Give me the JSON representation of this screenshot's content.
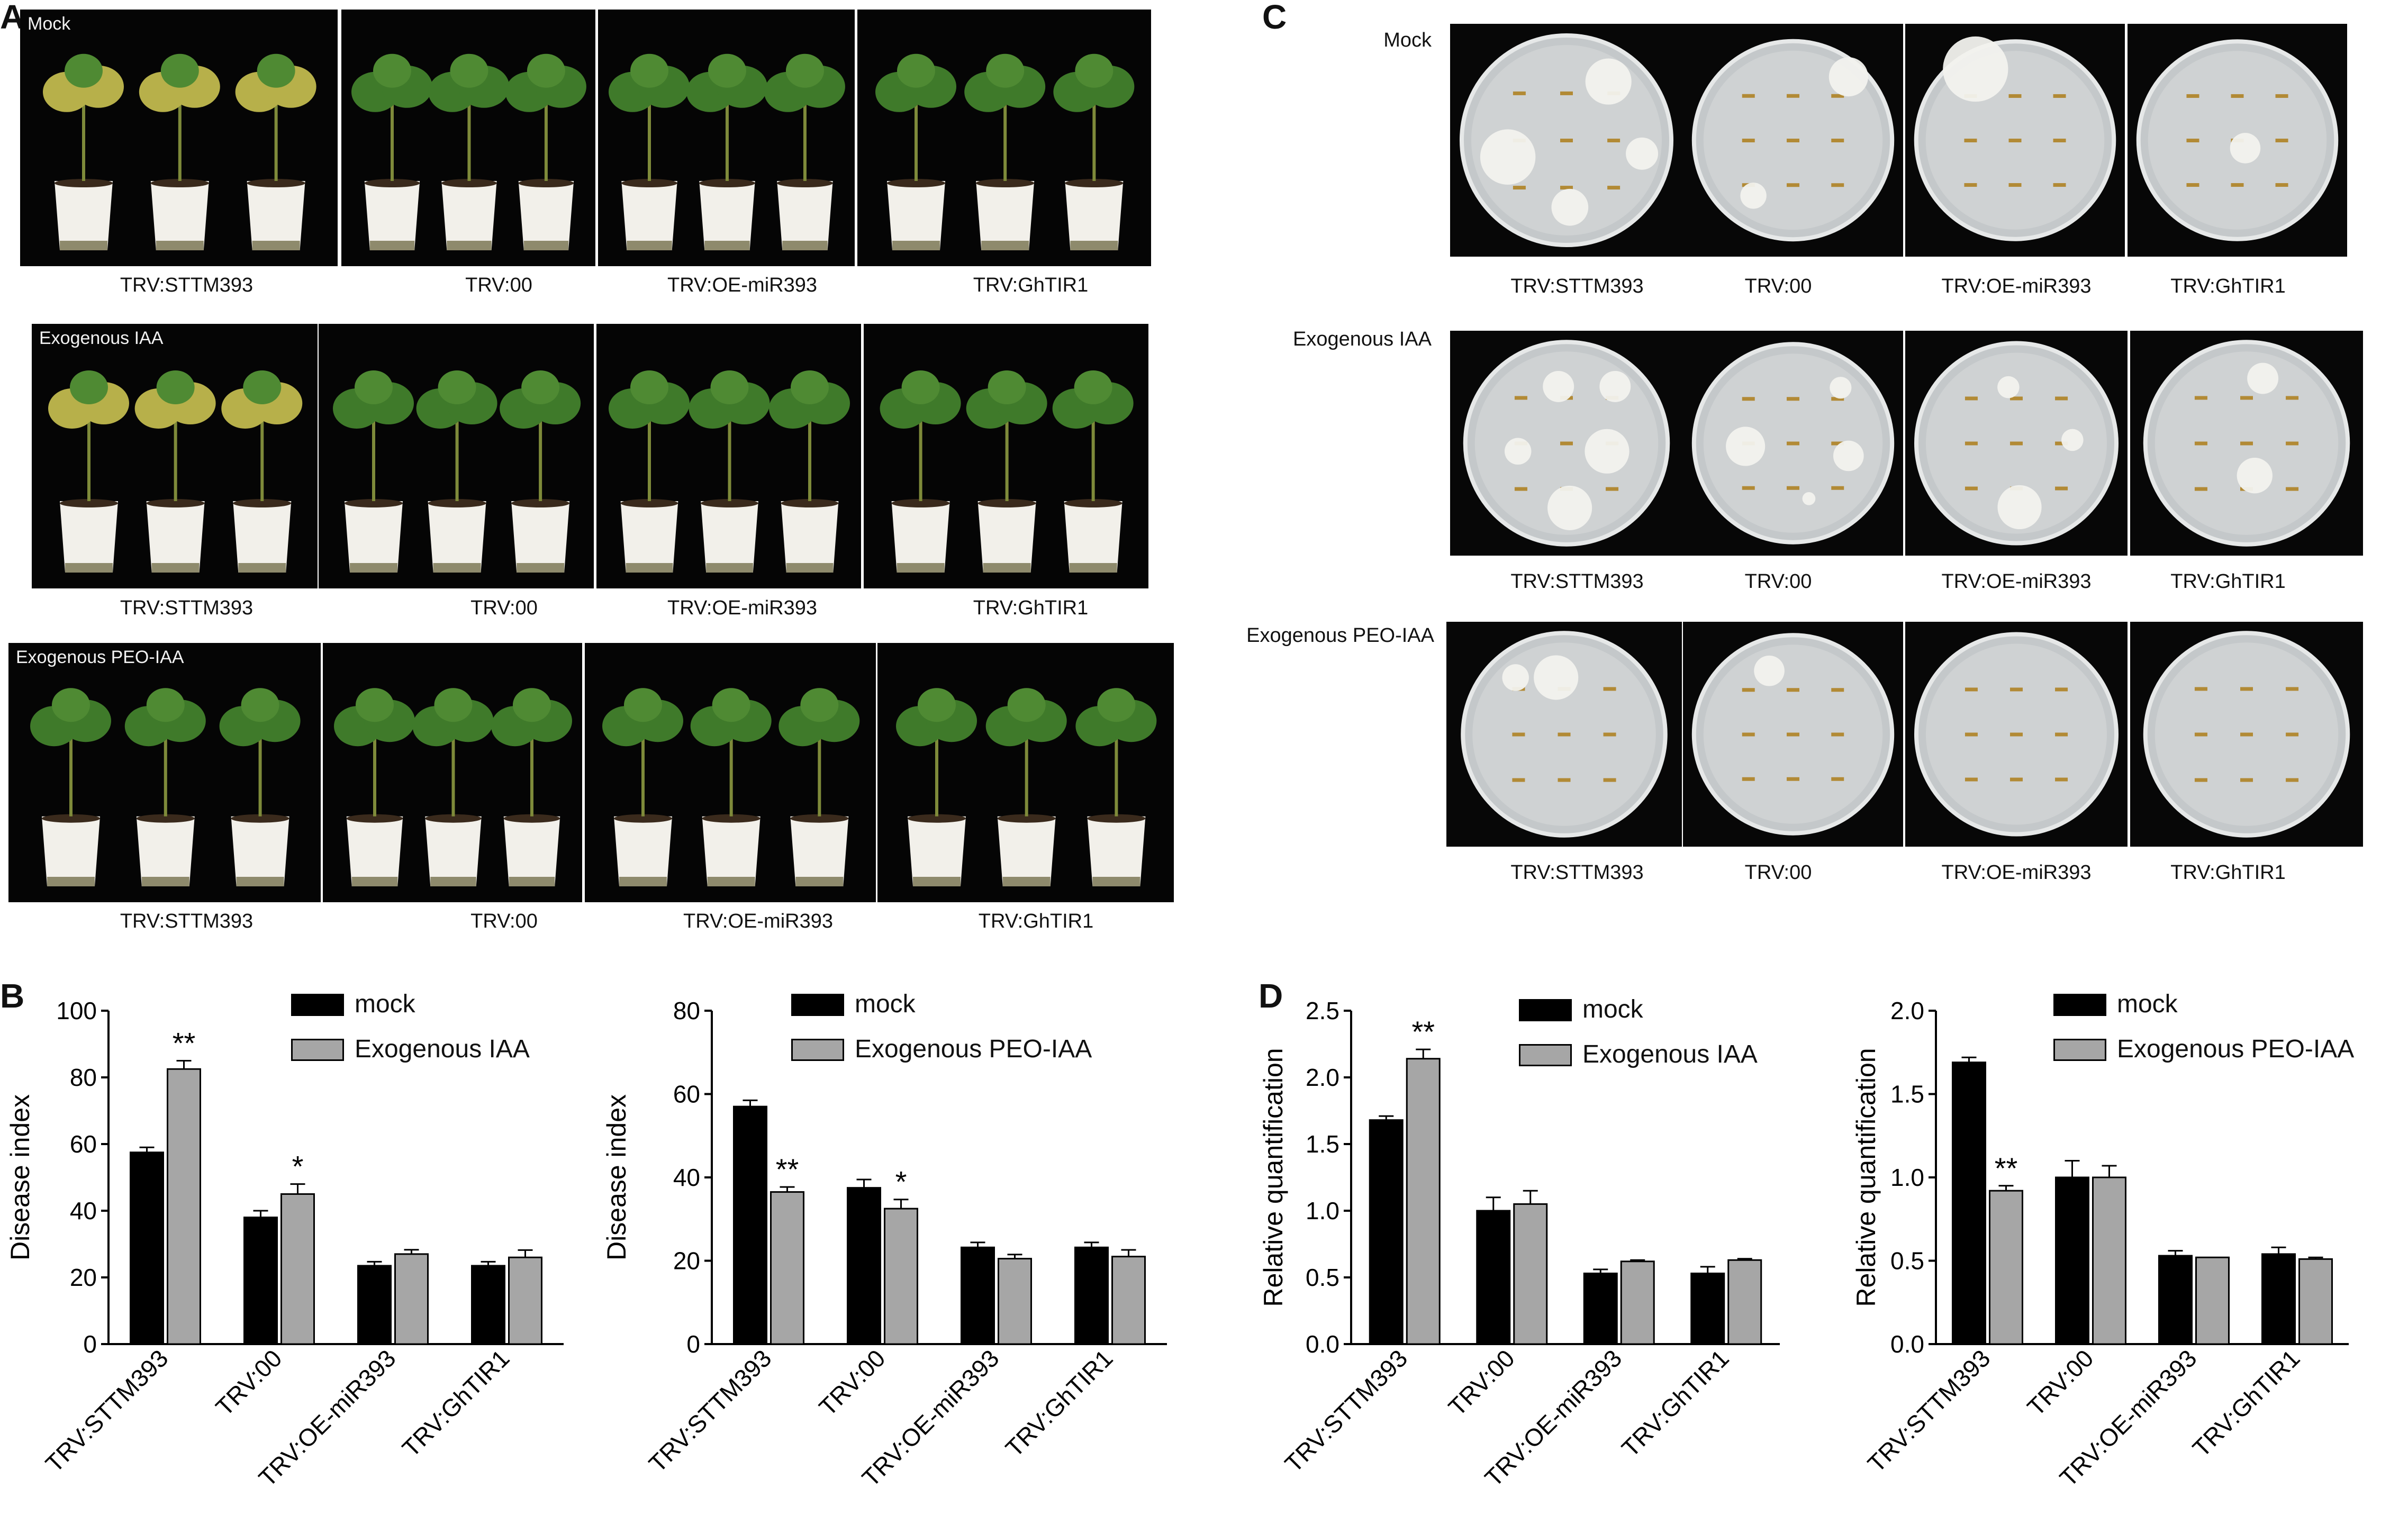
{
  "panel_letters": {
    "a": "A",
    "b": "B",
    "c": "C",
    "d": "D"
  },
  "colors": {
    "mock": "#000000",
    "treated": "#a6a6a6",
    "photo_bg": "#050505",
    "plant_leaf": "#3f7a2a",
    "pot": "#f2f0ea",
    "plate": "#cfd2d3"
  },
  "panel_a": {
    "rows": [
      {
        "label": "Mock",
        "captions": [
          "TRV:STTM393",
          "TRV:00",
          "TRV:OE-miR393",
          "TRV:GhTIR1"
        ]
      },
      {
        "label": "Exogenous IAA",
        "captions": [
          "TRV:STTM393",
          "TRV:00",
          "TRV:OE-miR393",
          "TRV:GhTIR1"
        ]
      },
      {
        "label": "Exogenous PEO-IAA",
        "captions": [
          "TRV:STTM393",
          "TRV:00",
          "TRV:OE-miR393",
          "TRV:GhTIR1"
        ]
      }
    ]
  },
  "panel_c": {
    "rows": [
      {
        "label": "Mock",
        "captions": [
          "TRV:STTM393",
          "TRV:00",
          "TRV:OE-miR393",
          "TRV:GhTIR1"
        ]
      },
      {
        "label": "Exogenous IAA",
        "captions": [
          "TRV:STTM393",
          "TRV:00",
          "TRV:OE-miR393",
          "TRV:GhTIR1"
        ]
      },
      {
        "label": "Exogenous PEO-IAA",
        "captions": [
          "TRV:STTM393",
          "TRV:00",
          "TRV:OE-miR393",
          "TRV:GhTIR1"
        ]
      }
    ]
  },
  "chart_data": [
    {
      "id": "B1",
      "type": "bar",
      "categories": [
        "TRV:STTM393",
        "TRV:00",
        "TRV:OE-miR393",
        "TRV:GhTIR1"
      ],
      "series": [
        {
          "name": "mock",
          "values": [
            57.5,
            38,
            23.5,
            23.5
          ],
          "errors": [
            1.5,
            2,
            1.2,
            1.2
          ]
        },
        {
          "name": "Exogenous IAA",
          "values": [
            82.5,
            45,
            27,
            26
          ],
          "errors": [
            2.5,
            3,
            1.3,
            2.2
          ]
        }
      ],
      "significance": [
        [
          "",
          "**"
        ],
        [
          "",
          "*"
        ],
        [
          "",
          ""
        ],
        [
          "",
          ""
        ]
      ],
      "ylabel": "Disease index",
      "ylim": [
        0,
        100
      ],
      "yticks": [
        0,
        20,
        40,
        60,
        80,
        100
      ],
      "ytick_labels": [
        "0",
        "20",
        "40",
        "60",
        "80",
        "100"
      ]
    },
    {
      "id": "B2",
      "type": "bar",
      "categories": [
        "TRV:STTM393",
        "TRV:00",
        "TRV:OE-miR393",
        "TRV:GhTIR1"
      ],
      "series": [
        {
          "name": "mock",
          "values": [
            57,
            37.5,
            23.2,
            23.2
          ],
          "errors": [
            1.5,
            2,
            1.2,
            1.2
          ]
        },
        {
          "name": "Exogenous PEO-IAA",
          "values": [
            36.5,
            32.5,
            20.5,
            21
          ],
          "errors": [
            1.2,
            2.2,
            1,
            1.6
          ]
        }
      ],
      "significance": [
        [
          "",
          "**"
        ],
        [
          "",
          "*"
        ],
        [
          "",
          ""
        ],
        [
          "",
          ""
        ]
      ],
      "ylabel": "Disease index",
      "ylim": [
        0,
        80
      ],
      "yticks": [
        0,
        20,
        40,
        60,
        80
      ],
      "ytick_labels": [
        "0",
        "20",
        "40",
        "60",
        "80"
      ]
    },
    {
      "id": "D1",
      "type": "bar",
      "categories": [
        "TRV:STTM393",
        "TRV:00",
        "TRV:OE-miR393",
        "TRV:GhTIR1"
      ],
      "series": [
        {
          "name": "mock",
          "values": [
            1.68,
            1.0,
            0.53,
            0.53
          ],
          "errors": [
            0.03,
            0.1,
            0.03,
            0.05
          ]
        },
        {
          "name": "Exogenous IAA",
          "values": [
            2.14,
            1.05,
            0.62,
            0.63
          ],
          "errors": [
            0.07,
            0.1,
            0.01,
            0.01
          ]
        }
      ],
      "significance": [
        [
          "",
          "**"
        ],
        [
          "",
          ""
        ],
        [
          "",
          ""
        ],
        [
          "",
          ""
        ]
      ],
      "ylabel": "Relative quantification",
      "ylim": [
        0,
        2.5
      ],
      "yticks": [
        0,
        0.5,
        1,
        1.5,
        2,
        2.5
      ],
      "ytick_labels": [
        "0.0",
        "0.5",
        "1.0",
        "1.5",
        "2.0",
        "2.5"
      ]
    },
    {
      "id": "D2",
      "type": "bar",
      "categories": [
        "TRV:STTM393",
        "TRV:00",
        "TRV:OE-miR393",
        "TRV:GhTIR1"
      ],
      "series": [
        {
          "name": "mock",
          "values": [
            1.69,
            1.0,
            0.53,
            0.54
          ],
          "errors": [
            0.03,
            0.1,
            0.03,
            0.04
          ]
        },
        {
          "name": "Exogenous PEO-IAA",
          "values": [
            0.92,
            1.0,
            0.52,
            0.51
          ],
          "errors": [
            0.03,
            0.07,
            0,
            0.01
          ]
        }
      ],
      "significance": [
        [
          "",
          "**"
        ],
        [
          "",
          ""
        ],
        [
          "",
          ""
        ],
        [
          "",
          ""
        ]
      ],
      "ylabel": "Relative quantification",
      "ylim": [
        0,
        2
      ],
      "yticks": [
        0,
        0.5,
        1,
        1.5,
        2
      ],
      "ytick_labels": [
        "0.0",
        "0.5",
        "1.0",
        "1.5",
        "2.0"
      ]
    }
  ]
}
